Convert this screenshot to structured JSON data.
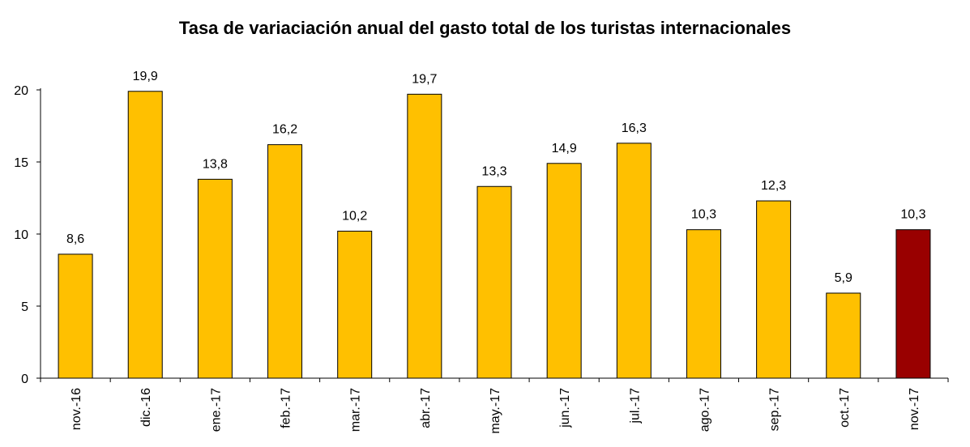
{
  "chart_data": {
    "type": "bar",
    "title": "Tasa de variaciación anual del gasto total de los turistas internacionales",
    "xlabel": "",
    "ylabel": "",
    "categories": [
      "nov.-16",
      "dic.-16",
      "ene.-17",
      "feb.-17",
      "mar.-17",
      "abr.-17",
      "may.-17",
      "jun.-17",
      "jul.-17",
      "ago.-17",
      "sep.-17",
      "oct.-17",
      "nov.-17"
    ],
    "values": [
      8.6,
      19.9,
      13.8,
      16.2,
      10.2,
      19.7,
      13.3,
      14.9,
      16.3,
      10.3,
      12.3,
      5.9,
      10.3
    ],
    "value_labels": [
      "8,6",
      "19,9",
      "13,8",
      "16,2",
      "10,2",
      "19,7",
      "13,3",
      "14,9",
      "16,3",
      "10,3",
      "12,3",
      "5,9",
      "10,3"
    ],
    "ylim": [
      0,
      20
    ],
    "yticks": [
      0,
      5,
      10,
      15,
      20
    ],
    "grid": false,
    "colors": {
      "bar": "#FFC000",
      "highlight": "#990000",
      "highlight_index": 12,
      "outline": "#000000"
    }
  }
}
